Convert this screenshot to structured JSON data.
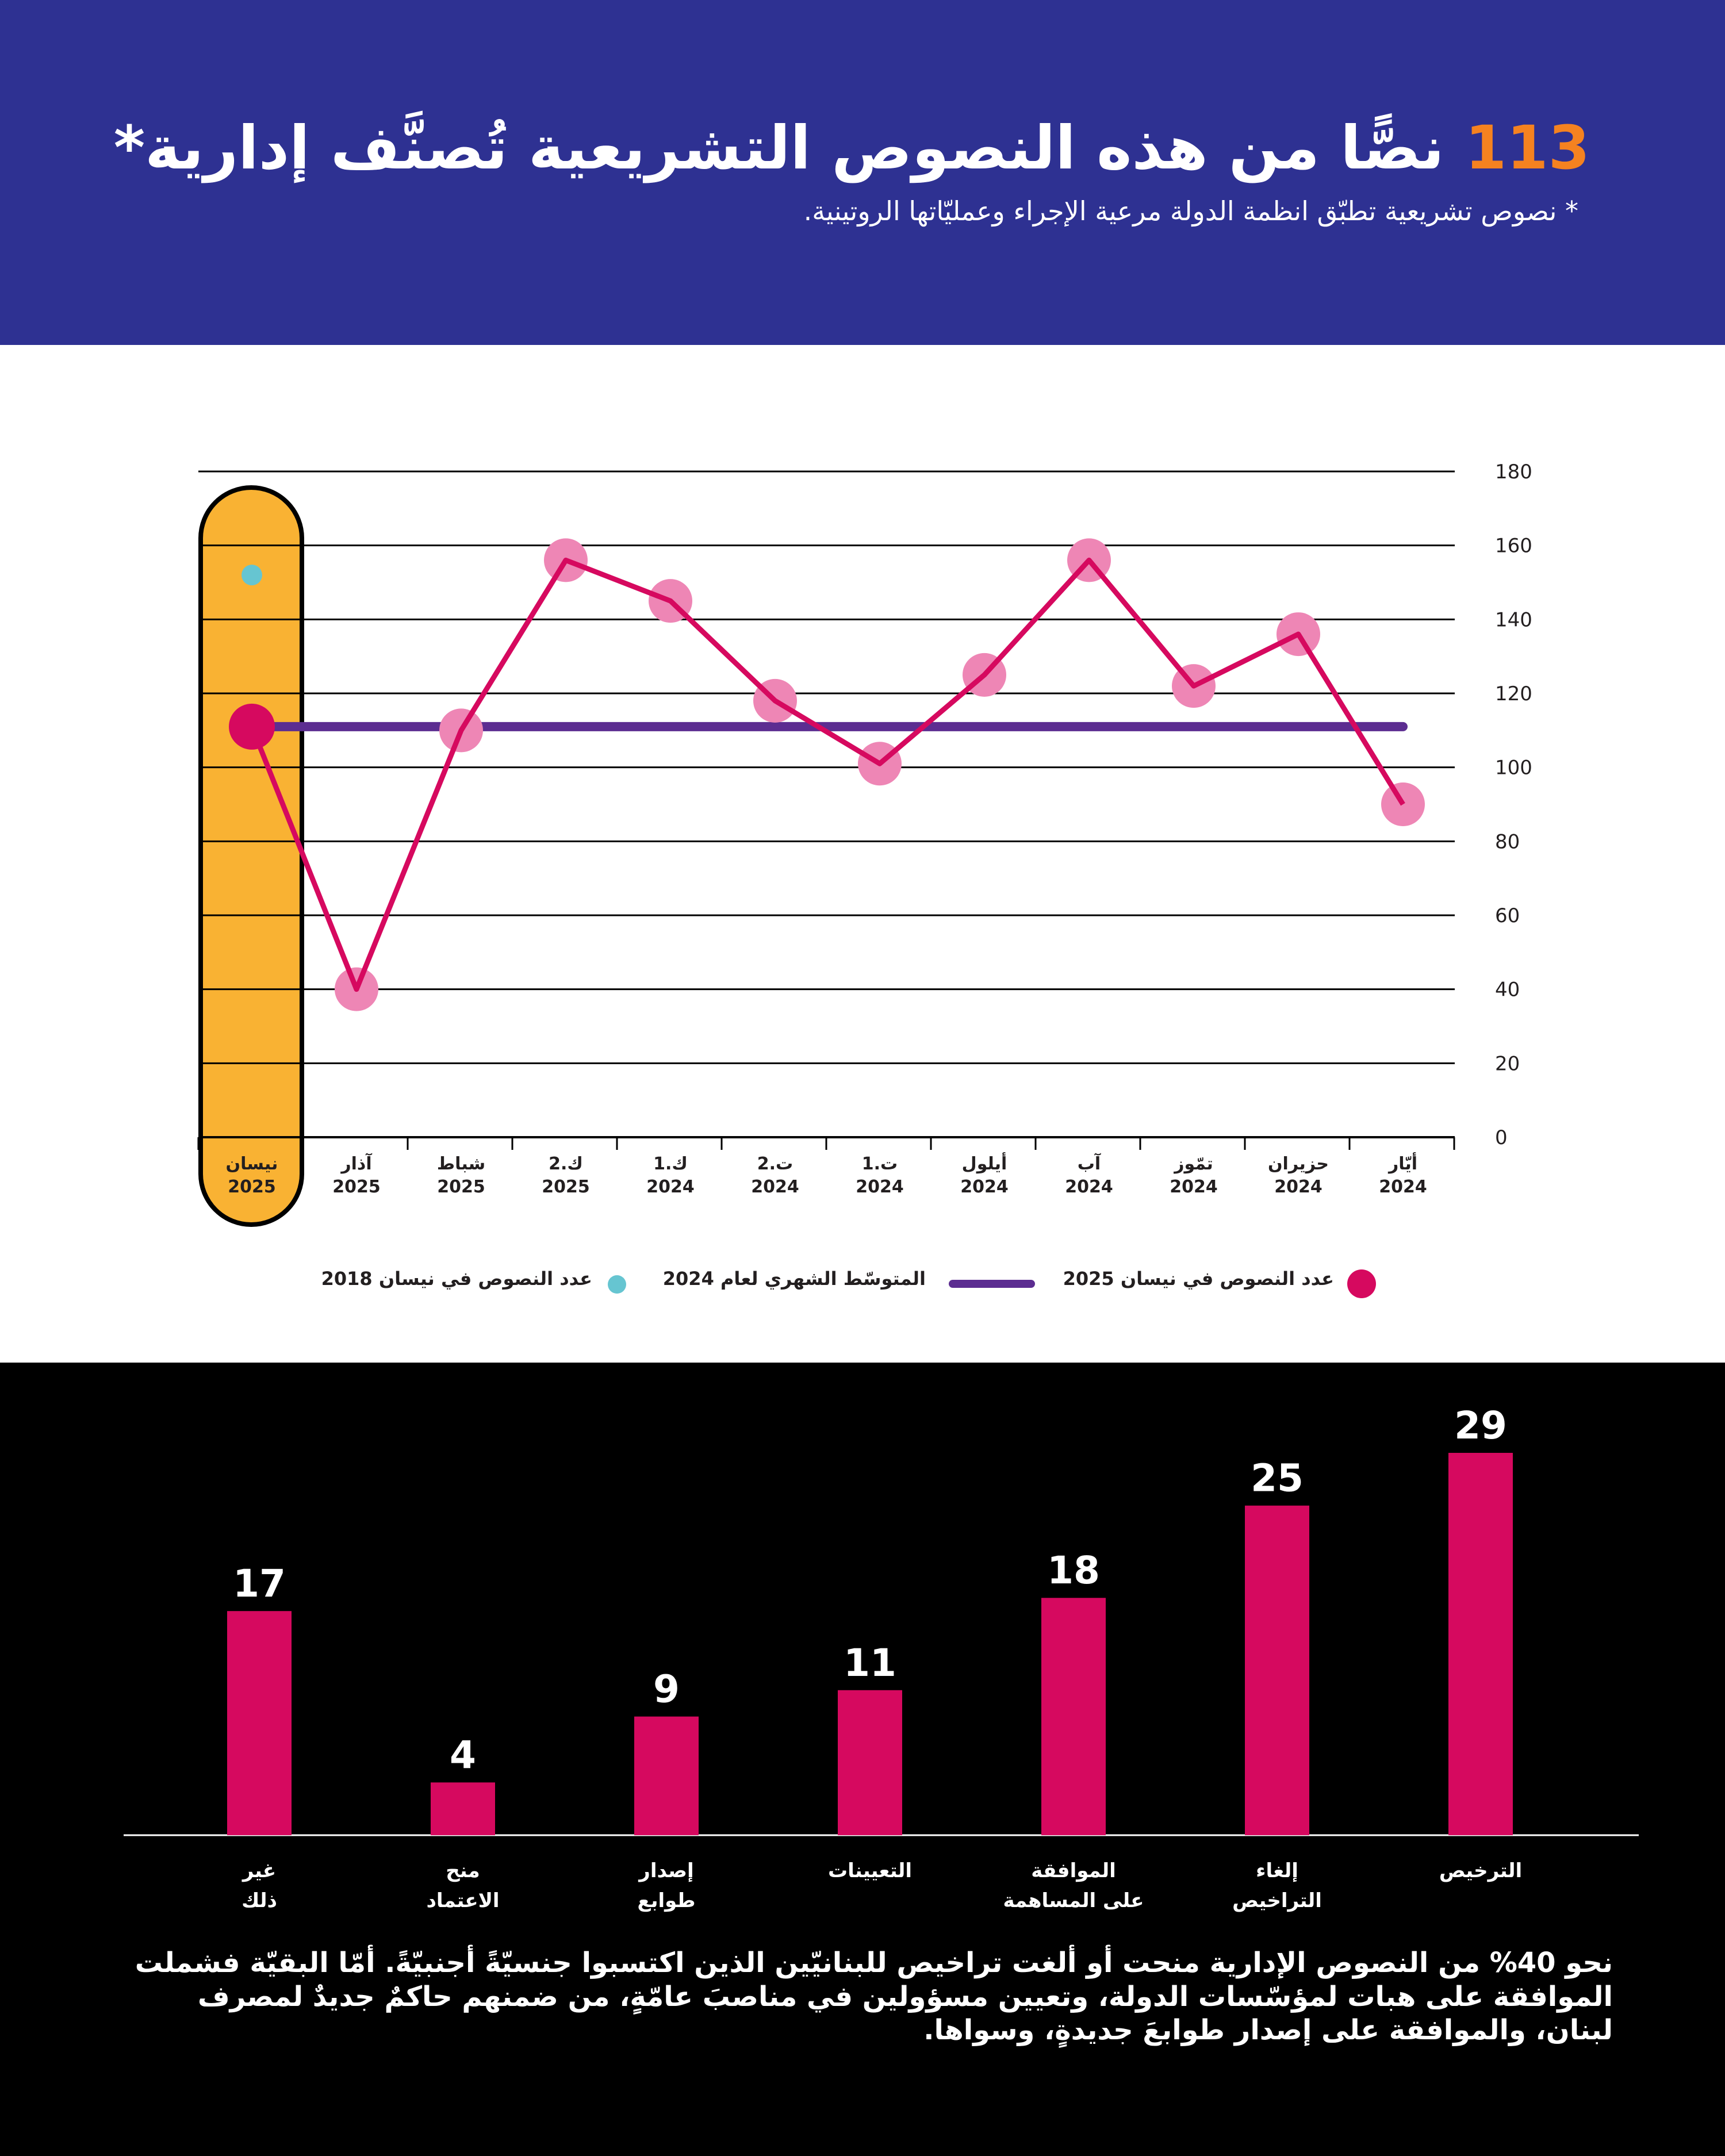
{
  "header": {
    "title_number": "113",
    "title_text": "نصًّا من هذه النصوص التشريعية تُصنَّف إدارية*",
    "subtitle": "* نصوص تشريعية تطبّق انظمة الدولة مرعية الإجراء وعمليّاتها الروتينية."
  },
  "colors": {
    "header_bg": "#2e3192",
    "accent_orange": "#f58220",
    "highlight_fill": "#f9b233",
    "series_2025": "#d6095f",
    "series_points": "#ee86b5",
    "avg_2024": "#5c2d91",
    "points_2018": "#66c5d1",
    "bar_fill": "#d6095f"
  },
  "legend": {
    "apr2025": "عدد النصوص في نيسان 2025",
    "avg2024": "المتوسّط الشهري لعام 2024",
    "apr2018": "عدد النصوص في نيسان 2018"
  },
  "chart_data": [
    {
      "type": "line",
      "categories": [
        [
          "أيّار",
          "2024"
        ],
        [
          "حزيران",
          "2024"
        ],
        [
          "تمّوز",
          "2024"
        ],
        [
          "آب",
          "2024"
        ],
        [
          "أيلول",
          "2024"
        ],
        [
          "ت.1",
          "2024"
        ],
        [
          "ت.2",
          "2024"
        ],
        [
          "ك.1",
          "2024"
        ],
        [
          "ك.2",
          "2025"
        ],
        [
          "شباط",
          "2025"
        ],
        [
          "آذار",
          "2025"
        ],
        [
          "نيسان",
          "2025"
        ]
      ],
      "series": [
        {
          "name": "عدد النصوص في نيسان 2025",
          "values": [
            90,
            136,
            122,
            156,
            125,
            101,
            118,
            145,
            156,
            110,
            40,
            111
          ]
        },
        {
          "name": "المتوسّط الشهري لعام 2024",
          "values": [
            111,
            111,
            111,
            111,
            111,
            111,
            111,
            111,
            111,
            111,
            111,
            111
          ]
        },
        {
          "name": "عدد النصوص في نيسان 2018",
          "values": [
            null,
            null,
            null,
            null,
            null,
            null,
            null,
            null,
            null,
            null,
            null,
            152
          ]
        }
      ],
      "yticks": [
        0,
        20,
        40,
        60,
        80,
        100,
        120,
        140,
        160,
        180
      ],
      "ylim": [
        0,
        180
      ],
      "highlighted_category": [
        "نيسان",
        "2025"
      ],
      "grid": true,
      "legend_position": "bottom"
    },
    {
      "type": "bar",
      "categories": [
        [
          "الترخيص"
        ],
        [
          "إلغاء",
          "التراخيص"
        ],
        [
          "الموافقة",
          "على المساهمة"
        ],
        [
          "التعيينات"
        ],
        [
          "إصدار",
          "طوابع"
        ],
        [
          "منح",
          "الاعتماد"
        ],
        [
          "غير",
          "ذلك"
        ]
      ],
      "values": [
        29,
        25,
        18,
        11,
        9,
        4,
        17
      ],
      "ylim": [
        0,
        29
      ]
    }
  ],
  "footnote": "نحو 40% من النصوص الإدارية منحت أو ألغت تراخيص للبنانيّين الذين اكتسبوا جنسيّةً أجنبيّةً. أمّا البقيّة فشملت الموافقة على هبات لمؤسّسات الدولة، وتعيين مسؤولين في مناصبَ عامّةٍ، من ضمنهم حاكمٌ جديدٌ لمصرف لبنان، والموافقة على إصدار طوابعَ جديدةٍ، وسواها."
}
